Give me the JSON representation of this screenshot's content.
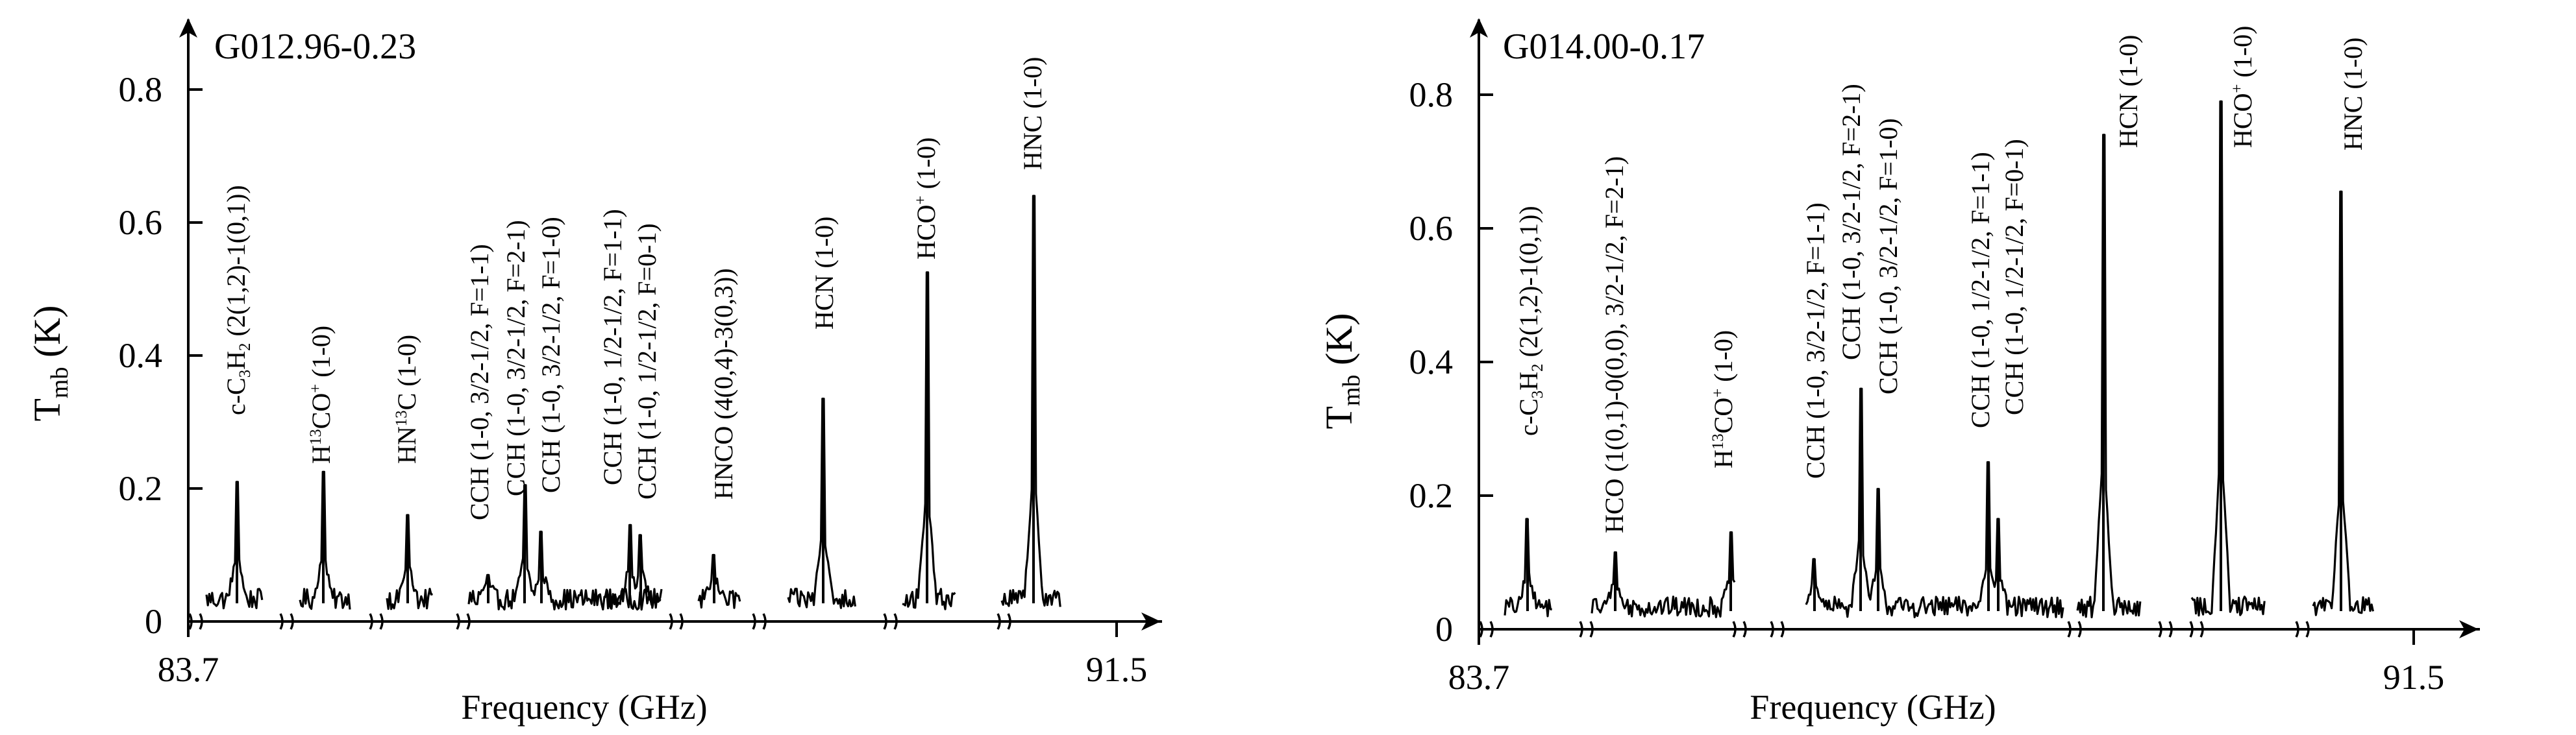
{
  "colors": {
    "ink": "#000000",
    "background": "#ffffff"
  },
  "chart_data": [
    {
      "type": "line",
      "title": "G012.96-0.23",
      "xlabel": "Frequency (GHz)",
      "ylabel_main": "T",
      "ylabel_sub": "mb",
      "ylabel_unit": " (K)",
      "ylim": [
        0,
        0.8
      ],
      "x_ticks": [
        "83.7",
        "91.5"
      ],
      "y_ticks": [
        "0",
        "0.2",
        "0.4",
        "0.6",
        "0.8"
      ],
      "axis_breaks": 8,
      "grid": false,
      "segments": [
        {
          "line": "c-C3H2 (2(1,2)-1(0,1))",
          "label_parts": [
            "c-C",
            {
              "sub": "3"
            },
            "H",
            {
              "sub": "2"
            },
            " (2(1,2)-1(0,1))"
          ],
          "peak_K": 0.21
        },
        {
          "line": "H13CO+ (1-0)",
          "label_parts": [
            "H",
            {
              "sup": "13"
            },
            "CO",
            {
              "sup": "+"
            },
            " (1-0)"
          ],
          "peak_K": 0.225
        },
        {
          "line": "HN13C (1-0)",
          "label_parts": [
            "HN",
            {
              "sup": "13"
            },
            "C (1-0)"
          ],
          "peak_K": 0.16
        },
        {
          "line": "CCH (1-0, 3/2-1/2)",
          "label_lines": [
            "CCH (1-0, 3/2-1/2, F=1-1)",
            "CCH (1-0, 3/2-1/2, F=2-1)",
            "CCH (1-0, 3/2-1/2, F=1-0)"
          ],
          "peaks_K": [
            0.07,
            0.205,
            0.135
          ]
        },
        {
          "line": "CCH (1-0, 1/2-1/2)",
          "label_lines": [
            "CCH (1-0, 1/2-1/2, F=1-1)",
            "CCH (1-0, 1/2-1/2, F=0-1)"
          ],
          "peaks_K": [
            0.145,
            0.13
          ]
        },
        {
          "line": "HNCO (4(0,4)-3(0,3))",
          "label_parts": [
            "HNCO (4(0,4)-3(0,3))"
          ],
          "peak_K": 0.1
        },
        {
          "line": "HCN (1-0)",
          "label_parts": [
            "HCN (1-0)"
          ],
          "peak_K": 0.335
        },
        {
          "line": "HCO+ (1-0)",
          "label_parts": [
            "HCO",
            {
              "sup": "+"
            },
            " (1-0)"
          ],
          "peak_K": 0.525
        },
        {
          "line": "HNC (1-0)",
          "label_parts": [
            "HNC (1-0)"
          ],
          "peak_K": 0.64
        }
      ]
    },
    {
      "type": "line",
      "title": "G014.00-0.17",
      "xlabel": "Frequency (GHz)",
      "ylabel_main": "T",
      "ylabel_sub": "mb",
      "ylabel_unit": " (K)",
      "ylim": [
        0,
        0.8
      ],
      "x_ticks": [
        "83.7",
        "91.5"
      ],
      "y_ticks": [
        "0",
        "0.2",
        "0.4",
        "0.6",
        "0.8"
      ],
      "axis_breaks": 8,
      "grid": false,
      "segments": [
        {
          "line": "c-C3H2 (2(1,2)-1(0,1))",
          "label_parts": [
            "c-C",
            {
              "sub": "3"
            },
            "H",
            {
              "sub": "2"
            },
            " (2(1,2)-1(0,1))"
          ],
          "peak_K": 0.165
        },
        {
          "line": "HCO (1(0,1)-0(0,0), 3/2-1/2, F=2-1) / H13CO+ (1-0)",
          "label_lines": [
            "HCO (1(0,1)-0(0,0), 3/2-1/2, F=2-1)",
            "H13CO+ (1-0)"
          ],
          "peaks_K": [
            0.115,
            0.145
          ]
        },
        {
          "line": "CCH (1-0, 3/2-1/2) and CCH (1-0, 1/2-1/2)",
          "label_lines": [
            "CCH (1-0, 3/2-1/2, F=1-1)",
            "CCH (1-0, 3/2-1/2, F=2-1)",
            "CCH (1-0, 3/2-1/2, F=1-0)",
            "CCH (1-0, 1/2-1/2, F=1-1)",
            "CCH (1-0, 1/2-1/2, F=0-1)"
          ],
          "peaks_K": [
            0.105,
            0.36,
            0.21,
            0.25,
            0.165
          ]
        },
        {
          "line": "HCN (1-0)",
          "label_parts": [
            "HCN (1-0)"
          ],
          "peak_K": 0.74
        },
        {
          "line": "HCO+ (1-0)",
          "label_parts": [
            "HCO",
            {
              "sup": "+"
            },
            " (1-0)"
          ],
          "peak_K": 0.79
        },
        {
          "line": "HNC (1-0)",
          "label_parts": [
            "HNC (1-0)"
          ],
          "peak_K": 0.655
        }
      ]
    }
  ]
}
